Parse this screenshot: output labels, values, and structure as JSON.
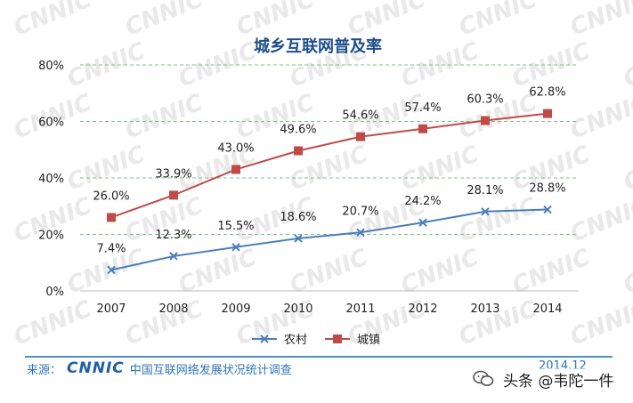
{
  "chart_data": {
    "type": "line",
    "title": "城乡互联网普及率",
    "categories": [
      "2007",
      "2008",
      "2009",
      "2010",
      "2011",
      "2012",
      "2013",
      "2014"
    ],
    "y_ticks": [
      "0%",
      "20%",
      "40%",
      "60%",
      "80%"
    ],
    "ylim": [
      0,
      80
    ],
    "grid": true,
    "legend": "bottom",
    "series": [
      {
        "name": "农村",
        "values": [
          7.4,
          12.3,
          15.5,
          18.6,
          20.7,
          24.2,
          28.1,
          28.8
        ],
        "labels": [
          "7.4%",
          "12.3%",
          "15.5%",
          "18.6%",
          "20.7%",
          "24.2%",
          "28.1%",
          "28.8%"
        ],
        "color": "#4a7ebb",
        "marker": "x"
      },
      {
        "name": "城镇",
        "values": [
          26.0,
          33.9,
          43.0,
          49.6,
          54.6,
          57.4,
          60.3,
          62.8
        ],
        "labels": [
          "26.0%",
          "33.9%",
          "43.0%",
          "49.6%",
          "54.6%",
          "57.4%",
          "60.3%",
          "62.8%"
        ],
        "color": "#be4b48",
        "marker": "square"
      }
    ]
  },
  "footer": {
    "source_label": "来源：",
    "logo_text": "CNNIC",
    "source_text": "中国互联网络发展状况统计调查",
    "date": "2014.12"
  },
  "overlay": {
    "text": "头条 @韦陀一件",
    "icon": "wechat-icon"
  },
  "watermark": {
    "text": "CNNIC"
  }
}
